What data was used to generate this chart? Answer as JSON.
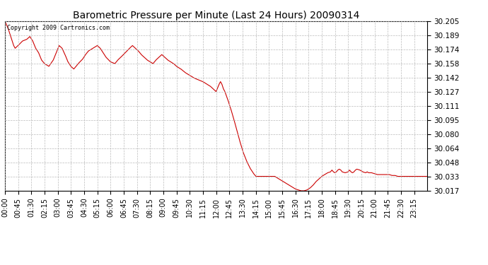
{
  "title": "Barometric Pressure per Minute (Last 24 Hours) 20090314",
  "copyright": "Copyright 2009 Cartronics.com",
  "line_color": "#cc0000",
  "background_color": "#ffffff",
  "grid_color": "#bbbbbb",
  "ylim": [
    30.017,
    30.205
  ],
  "yticks": [
    30.017,
    30.033,
    30.048,
    30.064,
    30.08,
    30.095,
    30.111,
    30.127,
    30.142,
    30.158,
    30.174,
    30.189,
    30.205
  ],
  "xtick_labels": [
    "00:00",
    "00:45",
    "01:30",
    "02:15",
    "03:00",
    "03:45",
    "04:30",
    "05:15",
    "06:00",
    "06:45",
    "07:30",
    "08:15",
    "09:00",
    "09:45",
    "10:30",
    "11:15",
    "12:00",
    "12:45",
    "13:30",
    "14:15",
    "15:00",
    "15:45",
    "16:30",
    "17:15",
    "18:00",
    "18:45",
    "19:30",
    "20:15",
    "21:00",
    "21:45",
    "22:30",
    "23:15"
  ],
  "waypoints": [
    [
      0,
      30.205
    ],
    [
      10,
      30.198
    ],
    [
      20,
      30.188
    ],
    [
      30,
      30.178
    ],
    [
      35,
      30.175
    ],
    [
      45,
      30.178
    ],
    [
      60,
      30.183
    ],
    [
      75,
      30.185
    ],
    [
      85,
      30.188
    ],
    [
      95,
      30.183
    ],
    [
      105,
      30.175
    ],
    [
      115,
      30.17
    ],
    [
      125,
      30.162
    ],
    [
      135,
      30.158
    ],
    [
      150,
      30.155
    ],
    [
      165,
      30.162
    ],
    [
      175,
      30.17
    ],
    [
      185,
      30.178
    ],
    [
      195,
      30.175
    ],
    [
      205,
      30.168
    ],
    [
      215,
      30.16
    ],
    [
      225,
      30.155
    ],
    [
      235,
      30.152
    ],
    [
      250,
      30.158
    ],
    [
      265,
      30.163
    ],
    [
      275,
      30.168
    ],
    [
      285,
      30.172
    ],
    [
      300,
      30.175
    ],
    [
      315,
      30.178
    ],
    [
      325,
      30.175
    ],
    [
      335,
      30.17
    ],
    [
      345,
      30.165
    ],
    [
      360,
      30.16
    ],
    [
      375,
      30.158
    ],
    [
      385,
      30.162
    ],
    [
      395,
      30.165
    ],
    [
      410,
      30.17
    ],
    [
      425,
      30.175
    ],
    [
      435,
      30.178
    ],
    [
      445,
      30.175
    ],
    [
      455,
      30.172
    ],
    [
      465,
      30.168
    ],
    [
      475,
      30.165
    ],
    [
      485,
      30.162
    ],
    [
      495,
      30.16
    ],
    [
      505,
      30.158
    ],
    [
      515,
      30.162
    ],
    [
      525,
      30.165
    ],
    [
      535,
      30.168
    ],
    [
      545,
      30.165
    ],
    [
      555,
      30.162
    ],
    [
      565,
      30.16
    ],
    [
      575,
      30.158
    ],
    [
      585,
      30.155
    ],
    [
      600,
      30.152
    ],
    [
      615,
      30.148
    ],
    [
      630,
      30.145
    ],
    [
      645,
      30.142
    ],
    [
      660,
      30.14
    ],
    [
      675,
      30.138
    ],
    [
      690,
      30.135
    ],
    [
      700,
      30.133
    ],
    [
      710,
      30.13
    ],
    [
      720,
      30.127
    ],
    [
      730,
      30.135
    ],
    [
      735,
      30.138
    ],
    [
      740,
      30.135
    ],
    [
      745,
      30.13
    ],
    [
      750,
      30.127
    ],
    [
      760,
      30.118
    ],
    [
      770,
      30.108
    ],
    [
      780,
      30.097
    ],
    [
      790,
      30.085
    ],
    [
      800,
      30.073
    ],
    [
      812,
      30.06
    ],
    [
      824,
      30.05
    ],
    [
      836,
      30.042
    ],
    [
      848,
      30.036
    ],
    [
      856,
      30.033
    ],
    [
      865,
      30.033
    ],
    [
      875,
      30.033
    ],
    [
      890,
      30.033
    ],
    [
      900,
      30.033
    ],
    [
      910,
      30.033
    ],
    [
      920,
      30.033
    ],
    [
      930,
      30.031
    ],
    [
      940,
      30.029
    ],
    [
      950,
      30.027
    ],
    [
      960,
      30.025
    ],
    [
      970,
      30.023
    ],
    [
      980,
      30.021
    ],
    [
      990,
      30.019
    ],
    [
      1000,
      30.018
    ],
    [
      1010,
      30.017
    ],
    [
      1020,
      30.017
    ],
    [
      1030,
      30.018
    ],
    [
      1040,
      30.02
    ],
    [
      1050,
      30.023
    ],
    [
      1060,
      30.027
    ],
    [
      1070,
      30.03
    ],
    [
      1080,
      30.033
    ],
    [
      1090,
      30.035
    ],
    [
      1100,
      30.037
    ],
    [
      1110,
      30.038
    ],
    [
      1115,
      30.04
    ],
    [
      1120,
      30.038
    ],
    [
      1125,
      30.037
    ],
    [
      1130,
      30.038
    ],
    [
      1135,
      30.04
    ],
    [
      1140,
      30.041
    ],
    [
      1145,
      30.04
    ],
    [
      1150,
      30.038
    ],
    [
      1160,
      30.037
    ],
    [
      1170,
      30.038
    ],
    [
      1175,
      30.04
    ],
    [
      1180,
      30.038
    ],
    [
      1185,
      30.037
    ],
    [
      1190,
      30.038
    ],
    [
      1195,
      30.04
    ],
    [
      1200,
      30.041
    ],
    [
      1210,
      30.04
    ],
    [
      1220,
      30.038
    ],
    [
      1230,
      30.037
    ],
    [
      1235,
      30.038
    ],
    [
      1240,
      30.037
    ],
    [
      1250,
      30.037
    ],
    [
      1260,
      30.036
    ],
    [
      1270,
      30.035
    ],
    [
      1280,
      30.035
    ],
    [
      1290,
      30.035
    ],
    [
      1300,
      30.035
    ],
    [
      1310,
      30.035
    ],
    [
      1320,
      30.034
    ],
    [
      1330,
      30.034
    ],
    [
      1340,
      30.033
    ],
    [
      1350,
      30.033
    ],
    [
      1360,
      30.033
    ],
    [
      1370,
      30.033
    ],
    [
      1380,
      30.033
    ],
    [
      1390,
      30.033
    ],
    [
      1400,
      30.033
    ],
    [
      1410,
      30.033
    ],
    [
      1420,
      30.033
    ],
    [
      1430,
      30.033
    ],
    [
      1439,
      30.033
    ]
  ]
}
